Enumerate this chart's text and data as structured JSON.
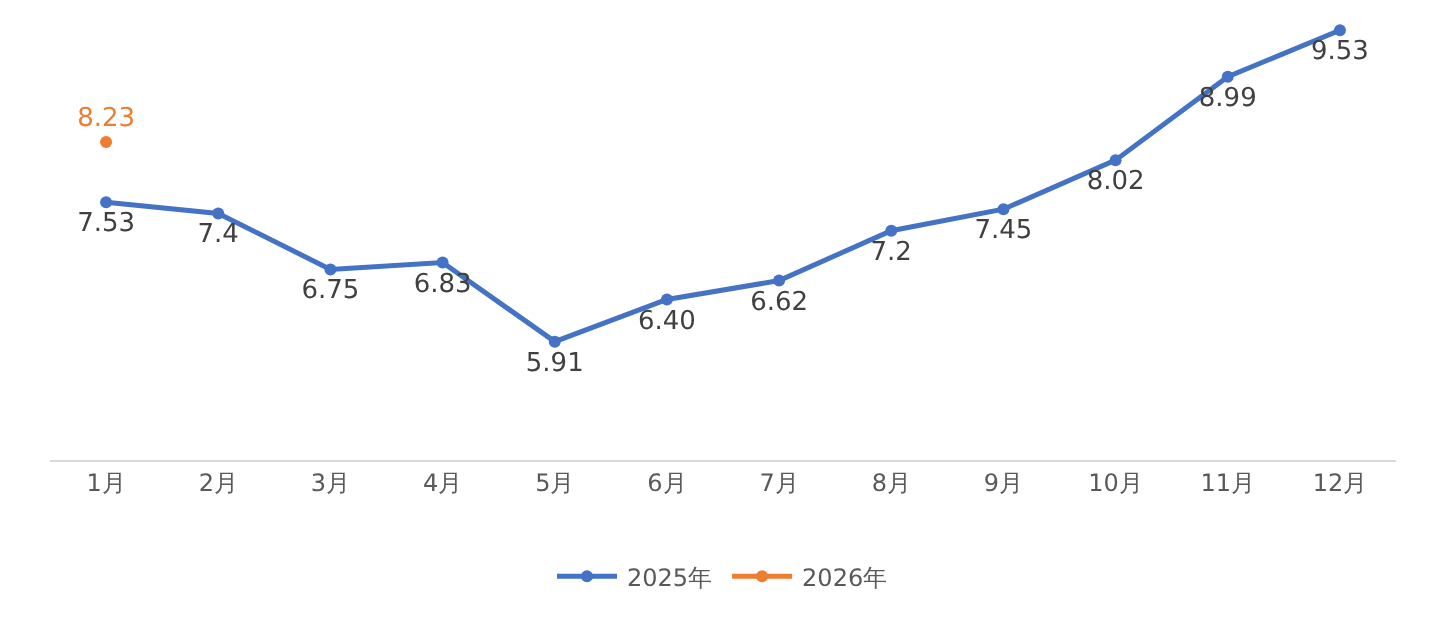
{
  "chart_data": {
    "type": "line",
    "categories": [
      "1月",
      "2月",
      "3月",
      "4月",
      "5月",
      "6月",
      "7月",
      "8月",
      "9月",
      "10月",
      "11月",
      "12月"
    ],
    "series": [
      {
        "name": "2025年",
        "color": "#4472c4",
        "values": [
          7.53,
          7.4,
          6.75,
          6.83,
          5.91,
          6.4,
          6.62,
          7.2,
          7.45,
          8.02,
          8.99,
          9.53
        ],
        "value_labels": [
          "7.53",
          "7.4",
          "6.75",
          "6.83",
          "5.91",
          "6.40",
          "6.62",
          "7.2",
          "7.45",
          "8.02",
          "8.99",
          "9.53"
        ]
      },
      {
        "name": "2026年",
        "color": "#ed7d31",
        "values": [
          8.23,
          null,
          null,
          null,
          null,
          null,
          null,
          null,
          null,
          null,
          null,
          null
        ],
        "value_labels": [
          "8.23",
          null,
          null,
          null,
          null,
          null,
          null,
          null,
          null,
          null,
          null,
          null
        ]
      }
    ],
    "marker": "circle",
    "line_style": "solid",
    "legend": "bottom",
    "tick_labels": "x"
  }
}
